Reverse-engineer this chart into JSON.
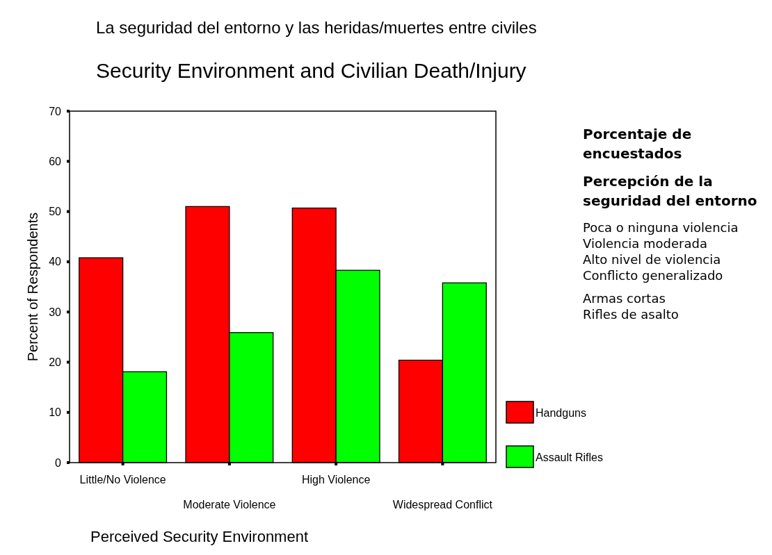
{
  "chart_data": {
    "type": "bar",
    "title": "Security Environment and Civilian Death/Injury",
    "xlabel": "Perceived Security Environment",
    "ylabel": "Percent of Respondents",
    "categories": [
      "Little/No Violence",
      "Moderate Violence",
      "High Violence",
      "Widespread Conflict"
    ],
    "series": [
      {
        "name": "Handguns",
        "color": "#ff0000",
        "values": [
          40.8,
          51.0,
          50.7,
          20.4
        ]
      },
      {
        "name": "Assault Rifles",
        "color": "#00ff00",
        "values": [
          18.1,
          25.9,
          38.3,
          35.8
        ]
      }
    ],
    "ylim": [
      0,
      70
    ],
    "yticks": [
      0,
      10,
      20,
      30,
      40,
      50,
      60,
      70
    ],
    "grid": false,
    "legend": "right",
    "annotations": [
      "La seguridad del entorno y las heridas/muertes entre civiles",
      "Porcentaje de encuestados",
      "Percepción de la seguridad del entorno",
      "Poca o ninguna violencia",
      "Violencia moderada",
      "Alto nivel de violencia",
      "Conflicto generalizado",
      "Armas cortas",
      "Rifles de asalto"
    ]
  }
}
